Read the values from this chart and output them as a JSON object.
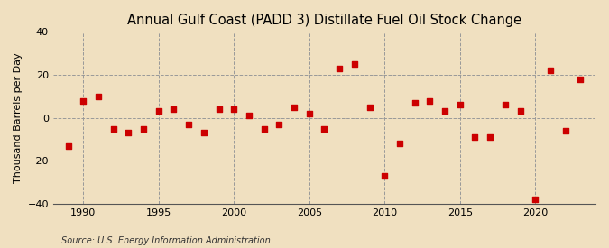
{
  "title": "Annual Gulf Coast (PADD 3) Distillate Fuel Oil Stock Change",
  "ylabel": "Thousand Barrels per Day",
  "source": "Source: U.S. Energy Information Administration",
  "background_color": "#f0e0c0",
  "plot_bg_color": "#f0e0c0",
  "years": [
    1989,
    1990,
    1991,
    1992,
    1993,
    1994,
    1995,
    1996,
    1997,
    1998,
    1999,
    2000,
    2001,
    2002,
    2003,
    2004,
    2005,
    2006,
    2007,
    2008,
    2009,
    2010,
    2011,
    2012,
    2013,
    2014,
    2015,
    2016,
    2017,
    2018,
    2019,
    2020,
    2021,
    2022,
    2023
  ],
  "values": [
    -13,
    8,
    10,
    -5,
    -7,
    -5,
    3,
    4,
    -3,
    -7,
    4,
    4,
    1,
    -5,
    -3,
    5,
    2,
    -5,
    23,
    25,
    5,
    -27,
    -12,
    7,
    8,
    3,
    6,
    -9,
    -9,
    6,
    3,
    -38,
    22,
    -6,
    18
  ],
  "marker_color": "#cc0000",
  "marker_size": 16,
  "ylim": [
    -40,
    40
  ],
  "yticks": [
    -40,
    -20,
    0,
    20,
    40
  ],
  "xlim": [
    1988,
    2024
  ],
  "xticks": [
    1990,
    1995,
    2000,
    2005,
    2010,
    2015,
    2020
  ],
  "hgrid_color": "#999999",
  "vgrid_color": "#999999",
  "grid_style": "--",
  "grid_linewidth": 0.7,
  "title_fontsize": 10.5,
  "tick_fontsize": 8,
  "ylabel_fontsize": 8,
  "source_fontsize": 7
}
